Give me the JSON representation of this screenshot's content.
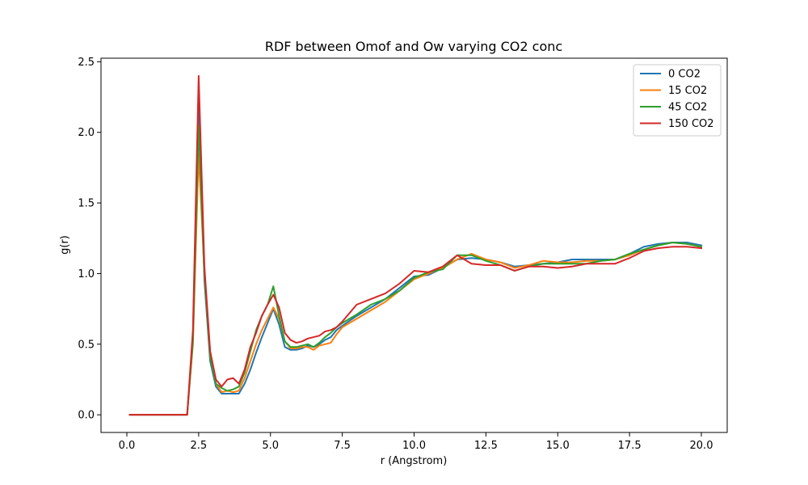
{
  "chart_data": {
    "type": "line",
    "title": "RDF between Omof and Ow varying CO2 conc",
    "xlabel": "r (Angstrom)",
    "ylabel": "g(r)",
    "xlim": [
      -0.9,
      20.9
    ],
    "ylim": [
      -0.125,
      2.525
    ],
    "xticks": [
      0.0,
      2.5,
      5.0,
      7.5,
      10.0,
      12.5,
      15.0,
      17.5,
      20.0
    ],
    "xtick_labels": [
      "0.0",
      "2.5",
      "5.0",
      "7.5",
      "10.0",
      "12.5",
      "15.0",
      "17.5",
      "20.0"
    ],
    "yticks": [
      0.0,
      0.5,
      1.0,
      1.5,
      2.0,
      2.5
    ],
    "ytick_labels": [
      "0.0",
      "0.5",
      "1.0",
      "1.5",
      "2.0",
      "2.5"
    ],
    "grid": false,
    "legend_position": "top-right",
    "series": [
      {
        "name": "0 CO2",
        "color": "#1f77b4",
        "x": [
          0.1,
          2.1,
          2.3,
          2.5,
          2.7,
          2.9,
          3.1,
          3.3,
          3.5,
          3.7,
          3.9,
          4.1,
          4.3,
          4.5,
          4.7,
          4.9,
          5.1,
          5.3,
          5.5,
          5.7,
          5.9,
          6.1,
          6.3,
          6.5,
          6.7,
          6.9,
          7.1,
          7.3,
          7.5,
          8.0,
          8.5,
          9.0,
          9.5,
          10.0,
          10.5,
          11.0,
          11.5,
          12.0,
          12.5,
          13.0,
          13.5,
          14.0,
          14.5,
          15.0,
          15.5,
          16.0,
          16.5,
          17.0,
          17.5,
          18.0,
          18.5,
          19.0,
          19.5,
          20.0
        ],
        "y": [
          0.0,
          0.0,
          0.55,
          2.2,
          0.95,
          0.38,
          0.2,
          0.15,
          0.15,
          0.15,
          0.15,
          0.22,
          0.32,
          0.44,
          0.55,
          0.65,
          0.75,
          0.64,
          0.48,
          0.46,
          0.46,
          0.47,
          0.49,
          0.48,
          0.5,
          0.53,
          0.55,
          0.6,
          0.63,
          0.7,
          0.76,
          0.82,
          0.9,
          0.98,
          0.99,
          1.04,
          1.1,
          1.11,
          1.1,
          1.08,
          1.05,
          1.06,
          1.07,
          1.08,
          1.1,
          1.1,
          1.1,
          1.1,
          1.14,
          1.19,
          1.21,
          1.22,
          1.22,
          1.2
        ]
      },
      {
        "name": "15 CO2",
        "color": "#ff7f0e",
        "x": [
          0.1,
          2.1,
          2.3,
          2.5,
          2.7,
          2.9,
          3.1,
          3.3,
          3.5,
          3.7,
          3.9,
          4.1,
          4.3,
          4.5,
          4.7,
          4.9,
          5.1,
          5.3,
          5.5,
          5.7,
          5.9,
          6.1,
          6.3,
          6.5,
          6.7,
          6.9,
          7.1,
          7.3,
          7.5,
          8.0,
          8.5,
          9.0,
          9.5,
          10.0,
          10.5,
          11.0,
          11.5,
          12.0,
          12.5,
          13.0,
          13.5,
          14.0,
          14.5,
          15.0,
          15.5,
          16.0,
          16.5,
          17.0,
          17.5,
          18.0,
          18.5,
          19.0,
          19.5,
          20.0
        ],
        "y": [
          0.0,
          0.0,
          0.5,
          1.85,
          1.0,
          0.45,
          0.22,
          0.16,
          0.17,
          0.16,
          0.17,
          0.26,
          0.38,
          0.5,
          0.6,
          0.68,
          0.76,
          0.68,
          0.52,
          0.47,
          0.47,
          0.48,
          0.48,
          0.46,
          0.49,
          0.5,
          0.51,
          0.57,
          0.62,
          0.68,
          0.74,
          0.8,
          0.88,
          0.96,
          1.0,
          1.04,
          1.1,
          1.14,
          1.1,
          1.08,
          1.04,
          1.06,
          1.09,
          1.08,
          1.08,
          1.09,
          1.09,
          1.1,
          1.13,
          1.17,
          1.2,
          1.22,
          1.21,
          1.19
        ]
      },
      {
        "name": "45 CO2",
        "color": "#2ca02c",
        "x": [
          0.1,
          2.1,
          2.3,
          2.5,
          2.7,
          2.9,
          3.1,
          3.3,
          3.5,
          3.7,
          3.9,
          4.1,
          4.3,
          4.5,
          4.7,
          4.9,
          5.1,
          5.3,
          5.5,
          5.7,
          5.9,
          6.1,
          6.3,
          6.5,
          6.7,
          6.9,
          7.1,
          7.3,
          7.5,
          8.0,
          8.5,
          9.0,
          9.5,
          10.0,
          10.5,
          11.0,
          11.5,
          12.0,
          12.5,
          13.0,
          13.5,
          14.0,
          14.5,
          15.0,
          15.5,
          16.0,
          16.5,
          17.0,
          17.5,
          18.0,
          18.5,
          19.0,
          19.5,
          20.0
        ],
        "y": [
          0.0,
          0.0,
          0.52,
          2.05,
          0.98,
          0.4,
          0.22,
          0.19,
          0.17,
          0.18,
          0.2,
          0.3,
          0.45,
          0.6,
          0.7,
          0.78,
          0.91,
          0.7,
          0.52,
          0.48,
          0.48,
          0.49,
          0.5,
          0.48,
          0.51,
          0.55,
          0.58,
          0.62,
          0.65,
          0.71,
          0.78,
          0.82,
          0.88,
          0.97,
          1.01,
          1.03,
          1.13,
          1.13,
          1.09,
          1.06,
          1.02,
          1.05,
          1.07,
          1.07,
          1.07,
          1.07,
          1.09,
          1.1,
          1.14,
          1.17,
          1.2,
          1.22,
          1.21,
          1.19
        ]
      },
      {
        "name": "150 CO2",
        "color": "#d62728",
        "x": [
          0.1,
          2.1,
          2.3,
          2.5,
          2.7,
          2.9,
          3.1,
          3.3,
          3.5,
          3.7,
          3.9,
          4.1,
          4.3,
          4.5,
          4.7,
          4.9,
          5.1,
          5.3,
          5.5,
          5.7,
          5.9,
          6.1,
          6.3,
          6.5,
          6.7,
          6.9,
          7.1,
          7.3,
          7.5,
          8.0,
          8.5,
          9.0,
          9.5,
          10.0,
          10.5,
          11.0,
          11.5,
          12.0,
          12.5,
          13.0,
          13.5,
          14.0,
          14.5,
          15.0,
          15.5,
          16.0,
          16.5,
          17.0,
          17.5,
          18.0,
          18.5,
          19.0,
          19.5,
          20.0
        ],
        "y": [
          0.0,
          0.0,
          0.6,
          2.4,
          1.05,
          0.45,
          0.25,
          0.2,
          0.25,
          0.26,
          0.22,
          0.32,
          0.48,
          0.58,
          0.7,
          0.78,
          0.85,
          0.76,
          0.58,
          0.53,
          0.51,
          0.52,
          0.54,
          0.55,
          0.56,
          0.59,
          0.6,
          0.62,
          0.66,
          0.78,
          0.82,
          0.86,
          0.93,
          1.02,
          1.01,
          1.05,
          1.13,
          1.07,
          1.06,
          1.06,
          1.02,
          1.05,
          1.05,
          1.04,
          1.05,
          1.07,
          1.07,
          1.07,
          1.11,
          1.16,
          1.18,
          1.19,
          1.19,
          1.18
        ]
      }
    ]
  }
}
